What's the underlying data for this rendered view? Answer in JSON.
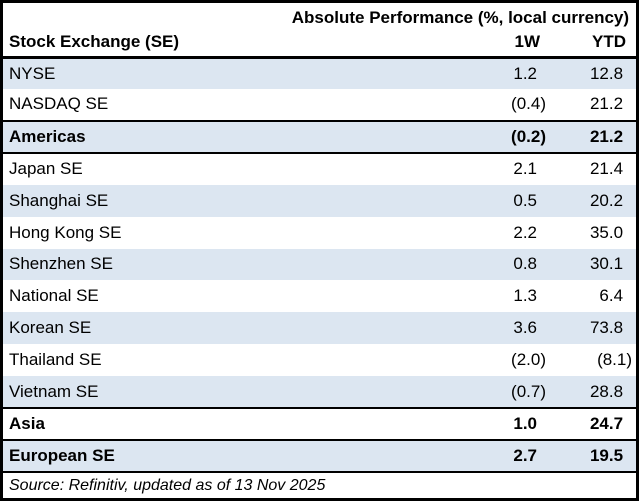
{
  "chart_data": {
    "type": "table",
    "title": "Absolute Performance (%, local currency)",
    "columns": [
      "Stock Exchange (SE)",
      "1W",
      "YTD"
    ],
    "rows": [
      {
        "name": "NYSE",
        "w1": "1.2",
        "ytd": "12.8",
        "bold": false,
        "shaded": true,
        "rule_above": false
      },
      {
        "name": "NASDAQ SE",
        "w1": "(0.4)",
        "ytd": "21.2",
        "bold": false,
        "shaded": false,
        "rule_above": false
      },
      {
        "name": "Americas",
        "w1": "(0.2)",
        "ytd": "21.2",
        "bold": true,
        "shaded": true,
        "rule_above": true
      },
      {
        "name": "Japan SE",
        "w1": "2.1",
        "ytd": "21.4",
        "bold": false,
        "shaded": false,
        "rule_above": true
      },
      {
        "name": "Shanghai SE",
        "w1": "0.5",
        "ytd": "20.2",
        "bold": false,
        "shaded": true,
        "rule_above": false
      },
      {
        "name": "Hong Kong SE",
        "w1": "2.2",
        "ytd": "35.0",
        "bold": false,
        "shaded": false,
        "rule_above": false
      },
      {
        "name": "Shenzhen SE",
        "w1": "0.8",
        "ytd": "30.1",
        "bold": false,
        "shaded": true,
        "rule_above": false
      },
      {
        "name": "National SE",
        "w1": "1.3",
        "ytd": "6.4",
        "bold": false,
        "shaded": false,
        "rule_above": false
      },
      {
        "name": "Korean SE",
        "w1": "3.6",
        "ytd": "73.8",
        "bold": false,
        "shaded": true,
        "rule_above": false
      },
      {
        "name": "Thailand SE",
        "w1": "(2.0)",
        "ytd": "(8.1)",
        "bold": false,
        "shaded": false,
        "rule_above": false
      },
      {
        "name": "Vietnam SE",
        "w1": "(0.7)",
        "ytd": "28.8",
        "bold": false,
        "shaded": true,
        "rule_above": false
      },
      {
        "name": "Asia",
        "w1": "1.0",
        "ytd": "24.7",
        "bold": true,
        "shaded": false,
        "rule_above": true
      },
      {
        "name": "European SE",
        "w1": "2.7",
        "ytd": "19.5",
        "bold": true,
        "shaded": true,
        "rule_above": true
      }
    ],
    "source_note": "Source: Refinitiv, updated as of 13 Nov 2025",
    "negative_format": "parentheses",
    "layout": {
      "grid": false,
      "legend": "none",
      "shaded_rows_alternate": true
    },
    "colors": {
      "row_shade": "#dce6f1",
      "rule": "#000000",
      "text": "#000000",
      "background": "#ffffff"
    }
  }
}
